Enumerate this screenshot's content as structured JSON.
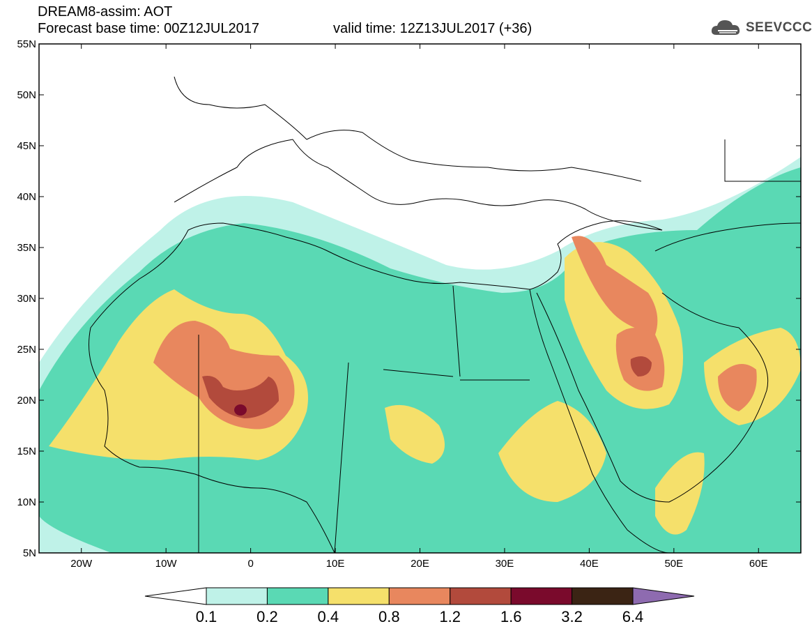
{
  "header": {
    "model_line": "DREAM8-assim: AOT",
    "base_time": "Forecast base time: 00Z12JUL2017",
    "valid_time": "valid time: 12Z13JUL2017 (+36)"
  },
  "logo": {
    "text": "SEEVCCC",
    "icon": "cloud-icon"
  },
  "map": {
    "lon_range": [
      -25,
      65
    ],
    "lat_range": [
      5,
      55
    ],
    "lat_ticks": [
      {
        "value": 55,
        "label": "55N"
      },
      {
        "value": 50,
        "label": "50N"
      },
      {
        "value": 45,
        "label": "45N"
      },
      {
        "value": 40,
        "label": "40N"
      },
      {
        "value": 35,
        "label": "35N"
      },
      {
        "value": 30,
        "label": "30N"
      },
      {
        "value": 25,
        "label": "25N"
      },
      {
        "value": 20,
        "label": "20N"
      },
      {
        "value": 15,
        "label": "15N"
      },
      {
        "value": 10,
        "label": "10N"
      },
      {
        "value": 5,
        "label": "5N"
      }
    ],
    "lon_ticks": [
      {
        "value": -20,
        "label": "20W"
      },
      {
        "value": -10,
        "label": "10W"
      },
      {
        "value": 0,
        "label": "0"
      },
      {
        "value": 10,
        "label": "10E"
      },
      {
        "value": 20,
        "label": "20E"
      },
      {
        "value": 30,
        "label": "30E"
      },
      {
        "value": 40,
        "label": "40E"
      },
      {
        "value": 50,
        "label": "50E"
      },
      {
        "value": 60,
        "label": "60E"
      }
    ]
  },
  "colorbar": {
    "levels": [
      "0.1",
      "0.2",
      "0.4",
      "0.8",
      "1.2",
      "1.6",
      "3.2",
      "6.4"
    ],
    "colors": [
      "#ffffff",
      "#bff2e8",
      "#5ad9b4",
      "#f5e06b",
      "#e8875e",
      "#b24a3c",
      "#7a0a2c",
      "#3b2414",
      "#8e6bb0"
    ]
  }
}
